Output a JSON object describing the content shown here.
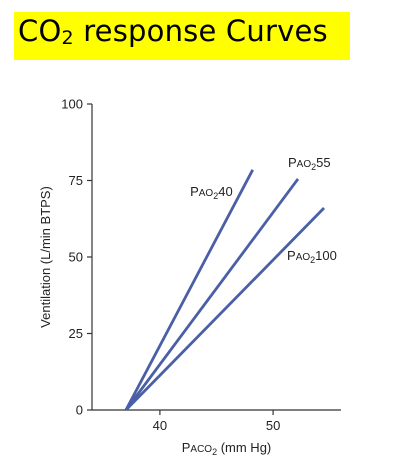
{
  "slide": {
    "title_main": "CO",
    "title_sub": "2",
    "title_rest": " response Curves",
    "title_bg": "#ffff00"
  },
  "chart_data": {
    "type": "line",
    "xlabel": {
      "prefix": "P",
      "small": "ACO",
      "sub": "2",
      "suffix": " (mm Hg)"
    },
    "ylabel": "Ventilation (L/min BTPS)",
    "xlim": [
      34,
      56
    ],
    "ylim": [
      0,
      100
    ],
    "xticks": [
      40,
      50
    ],
    "yticks": [
      0,
      25,
      50,
      75,
      100
    ],
    "grid": false,
    "line_color": "#4a5fa5",
    "series": [
      {
        "name": "PAO240",
        "label": {
          "prefix": "P",
          "small": "AO",
          "sub": "2",
          "value": "40"
        },
        "x": [
          37,
          48.2
        ],
        "y": [
          0,
          78.5
        ]
      },
      {
        "name": "PAO255",
        "label": {
          "prefix": "P",
          "small": "AO",
          "sub": "2",
          "value": "55"
        },
        "x": [
          37,
          52.2
        ],
        "y": [
          0,
          75.5
        ]
      },
      {
        "name": "PAO2100",
        "label": {
          "prefix": "P",
          "small": "AO",
          "sub": "2",
          "value": "100"
        },
        "x": [
          37,
          54.5
        ],
        "y": [
          0,
          66
        ]
      }
    ]
  }
}
